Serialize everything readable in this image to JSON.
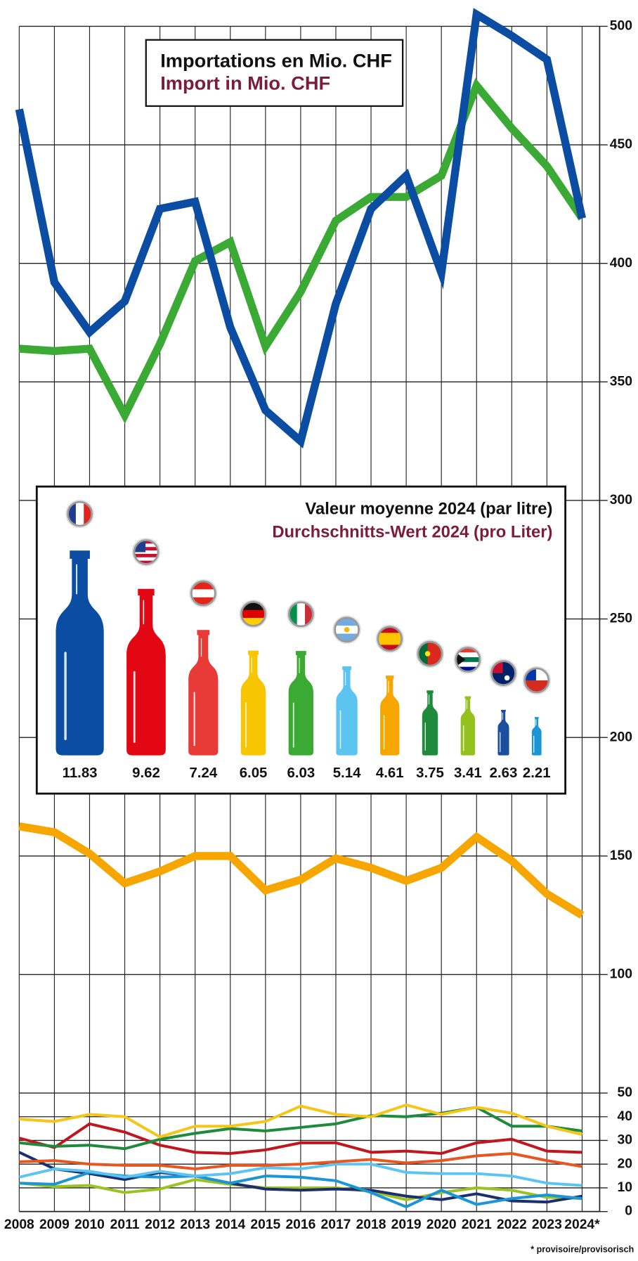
{
  "chart_data": [
    {
      "type": "line",
      "title": "Importations en Mio. CHF",
      "subtitle": "Import in Mio. CHF",
      "categories": [
        "2008",
        "2009",
        "2010",
        "2011",
        "2012",
        "2013",
        "2014",
        "2015",
        "2016",
        "2017",
        "2018",
        "2019",
        "2020",
        "2021",
        "2022",
        "2023",
        "2024*"
      ],
      "series": [
        {
          "color": "#0a4da2",
          "values": [
            465,
            392,
            371,
            384,
            423,
            426,
            373,
            338,
            325,
            383,
            423,
            437,
            396,
            505,
            496,
            486,
            419
          ]
        },
        {
          "color": "#3aaa35",
          "values": [
            364,
            363,
            364,
            336,
            366,
            401,
            409,
            365,
            388,
            418,
            428,
            428,
            437,
            475,
            457,
            441,
            419
          ]
        },
        {
          "color": "#f7a600",
          "values": [
            162.5,
            160,
            151,
            138.5,
            143.5,
            150,
            150,
            135.5,
            140,
            149,
            145,
            139.5,
            145,
            158,
            148,
            134,
            125
          ]
        },
        {
          "color": "#f5c518",
          "values": [
            39,
            38,
            41,
            40,
            31.5,
            36,
            36,
            38,
            44.5,
            41,
            40,
            45,
            41,
            44,
            41.5,
            36,
            32.5
          ]
        },
        {
          "color": "#1e8a3c",
          "values": [
            29,
            27.5,
            28,
            26.5,
            30.5,
            33,
            35,
            34,
            35.5,
            37,
            40.5,
            40,
            41.5,
            44,
            36,
            36,
            34
          ]
        },
        {
          "color": "#c0161d",
          "values": [
            31,
            27,
            37,
            33.5,
            28,
            25,
            24.5,
            26,
            29,
            29,
            25,
            25.5,
            24.5,
            29,
            30.5,
            25.5,
            25
          ]
        },
        {
          "color": "#e8551e",
          "values": [
            21,
            21.5,
            20,
            19.5,
            19.5,
            18,
            19.5,
            19.5,
            20,
            21,
            22,
            20.5,
            21.5,
            23.5,
            24.5,
            21.5,
            19
          ]
        },
        {
          "color": "#5bc4f1",
          "values": [
            14.5,
            18,
            17,
            14.5,
            17,
            15,
            16,
            18.5,
            18,
            20,
            20,
            16.5,
            16,
            16,
            15,
            12,
            11
          ]
        },
        {
          "color": "#1a96d6",
          "values": [
            12,
            11.5,
            16.5,
            15,
            14.5,
            15,
            12,
            15,
            14.5,
            13,
            8,
            2,
            9,
            3,
            5.5,
            7,
            5.5
          ]
        },
        {
          "color": "#1b2f6e",
          "values": [
            25,
            18,
            16,
            13.5,
            16.5,
            15,
            12,
            9.5,
            9,
            9.5,
            9,
            6.5,
            5,
            7.5,
            4.5,
            4,
            6.5
          ]
        },
        {
          "color": "#9bc31f",
          "values": [
            12,
            10.5,
            11,
            8,
            9.5,
            13.5,
            11.5,
            10,
            10,
            10,
            8.5,
            5,
            8,
            10,
            9,
            6,
            5.5
          ]
        }
      ],
      "ylim": [
        0,
        500
      ],
      "yticks": [
        0,
        10,
        20,
        30,
        40,
        50,
        100,
        150,
        200,
        250,
        300,
        350,
        400,
        450,
        500
      ],
      "grid": true,
      "footnote": "* provisoire/provisorisch"
    },
    {
      "type": "bottle",
      "title": "Valeur moyenne 2024 (par litre)",
      "subtitle": "Durchschnitts-Wert 2024 (pro Liter)",
      "values": [
        11.83,
        9.62,
        7.24,
        6.05,
        6.03,
        5.14,
        4.61,
        3.75,
        3.41,
        2.63,
        2.21
      ],
      "colors": [
        "#0a4da2",
        "#e30613",
        "#e83a37",
        "#f7c600",
        "#3aaa35",
        "#5bc4f1",
        "#f7a600",
        "#1e8a3c",
        "#95c11f",
        "#1b4e9c",
        "#1a96d6"
      ]
    }
  ]
}
